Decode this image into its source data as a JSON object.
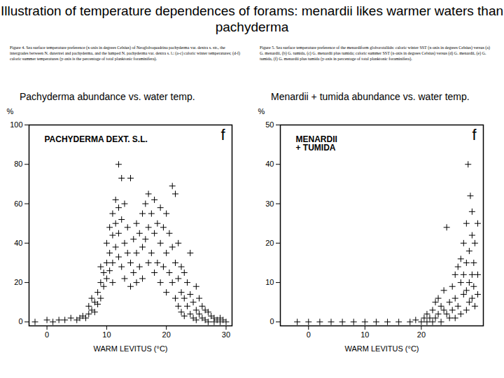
{
  "title": "Illustration of temperature dependences of forams: menardii likes warmer waters than pachyderma",
  "captions": [
    "Figure 4. Sea surface temperature preference (x-axis in degrees Celsius) of Neogloboquadrina pachyderma var. dextra s. str., the intergrades between N. dutertrei and pachyderma, and the lumped N. pachyderma var. dextra s. l.: (a-c) caloric winter temperatures; (d-f) caloric summer temperatures (y-axis is the percentage of total planktonic foraminifera).",
    "Figure 5. Sea surface temperature preference of the menardiform globorotaliids: caloric winter SST (x-axis in degrees Celsius) versus (a) G. menardii, (b) G. tumida, (c) G. menardii plus tumida; caloric summer SST (x-axis in degrees Celsius) versus (d) G. menardii, (e) G. tumida, (f) G. menardii plus tumida (y-axis in percentage of total planktonic foraminifera)."
  ],
  "chart_data": [
    {
      "type": "scatter",
      "title": "Pachyderma abundance vs. water temp.",
      "annotation": "PACHYDERMA DEXT. S.L.",
      "panel": "f",
      "x_label": "WARM LEVITUS (°C)",
      "y_label": "%",
      "marker": "plus",
      "color": "#000000",
      "grid": false,
      "xlim": [
        -3,
        31
      ],
      "xticks": [
        0,
        10,
        20,
        30
      ],
      "ylim": [
        -2,
        100
      ],
      "yticks": [
        0,
        20,
        40,
        60,
        80,
        100
      ],
      "x": [
        -2,
        0,
        1,
        2,
        3,
        4,
        5,
        5.5,
        6,
        6.5,
        7,
        7,
        7.5,
        7.5,
        8,
        8,
        8.5,
        8.5,
        9,
        9,
        9,
        9.5,
        9.5,
        10,
        10,
        10,
        10.5,
        10.5,
        10.5,
        11,
        11,
        11,
        11,
        11.5,
        11.5,
        11.5,
        12,
        12,
        12,
        12,
        12.5,
        12.5,
        12.5,
        13,
        13,
        13,
        13.5,
        13.5,
        14,
        14,
        14,
        14.5,
        14.5,
        15,
        15,
        15,
        15.5,
        15.5,
        16,
        16,
        16,
        16.5,
        16.5,
        17,
        17,
        17,
        17.5,
        17.5,
        18,
        18,
        18,
        18.5,
        18.5,
        19,
        19,
        19,
        19.5,
        19.5,
        20,
        20,
        20,
        20.5,
        20.5,
        21,
        21,
        21,
        21.5,
        21.5,
        21.5,
        22,
        22,
        22,
        22.5,
        22.5,
        22.5,
        23,
        23,
        23,
        23.5,
        23.5,
        24,
        24,
        24,
        24.5,
        24.5,
        25,
        25,
        25,
        25.5,
        25.5,
        26,
        26,
        26.5,
        26.5,
        27,
        27,
        27.5,
        28,
        28,
        28.5,
        29,
        29,
        29.5,
        30
      ],
      "values": [
        0,
        1,
        0,
        1,
        1,
        2,
        1,
        2,
        3,
        2,
        4,
        8,
        6,
        12,
        5,
        10,
        15,
        9,
        20,
        12,
        28,
        18,
        25,
        30,
        22,
        40,
        26,
        35,
        48,
        30,
        44,
        55,
        20,
        38,
        62,
        50,
        80,
        45,
        33,
        58,
        73,
        52,
        28,
        40,
        60,
        22,
        48,
        35,
        73,
        30,
        18,
        42,
        25,
        35,
        20,
        50,
        28,
        45,
        55,
        38,
        22,
        60,
        42,
        65,
        48,
        30,
        55,
        35,
        62,
        45,
        25,
        50,
        30,
        58,
        40,
        20,
        48,
        28,
        55,
        35,
        15,
        45,
        25,
        69,
        38,
        20,
        65,
        30,
        12,
        40,
        22,
        8,
        28,
        15,
        5,
        25,
        12,
        3,
        20,
        8,
        35,
        14,
        4,
        10,
        2,
        18,
        6,
        1,
        12,
        4,
        8,
        2,
        6,
        1,
        5,
        0,
        3,
        2,
        0,
        1,
        2,
        0,
        1,
        0
      ]
    },
    {
      "type": "scatter",
      "title": "Menardii + tumida abundance vs. water temp.",
      "annotation": "MENARDII\n+ TUMIDA",
      "panel": "f",
      "x_label": "WARM LEVITUS (°C)",
      "y_label": "%",
      "marker": "plus",
      "color": "#000000",
      "grid": false,
      "xlim": [
        -5,
        31
      ],
      "xticks": [
        0,
        10,
        20
      ],
      "ylim": [
        -1,
        50
      ],
      "yticks": [
        0,
        10,
        20,
        30,
        40,
        50
      ],
      "x": [
        -2,
        0,
        2,
        4,
        6,
        8,
        10,
        12,
        14,
        16,
        18,
        19,
        20,
        20.5,
        21,
        21,
        21.5,
        22,
        22,
        22.5,
        22.5,
        23,
        23,
        23.5,
        23.5,
        24,
        24,
        24.5,
        24.5,
        25,
        25,
        25.5,
        25.5,
        26,
        26,
        26,
        26.5,
        26.5,
        27,
        27,
        27,
        27.5,
        27.5,
        27.5,
        28,
        28,
        28,
        28,
        28.3,
        28.5,
        28.5,
        28.5,
        28.7,
        29,
        29,
        29,
        29,
        29.3,
        29.3,
        29.5,
        29.5,
        30,
        30,
        30
      ],
      "values": [
        0,
        0,
        0,
        0,
        0,
        0,
        0,
        0,
        0,
        0,
        0,
        0.5,
        0,
        1,
        0,
        2,
        1,
        3,
        0,
        5,
        1,
        2,
        6,
        4,
        0,
        3,
        8,
        24,
        2,
        5,
        1,
        9,
        3,
        12,
        6,
        1,
        14,
        4,
        10,
        16,
        2,
        7,
        12,
        20,
        15,
        8,
        3,
        25,
        40,
        18,
        10,
        5,
        32,
        22,
        12,
        6,
        28,
        15,
        9,
        20,
        4,
        12,
        25,
        7
      ]
    }
  ]
}
